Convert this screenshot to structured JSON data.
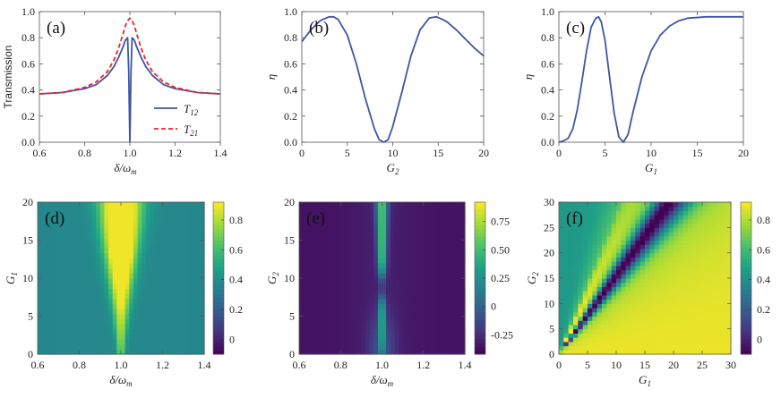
{
  "colors": {
    "blue": "#3f55a3",
    "red": "#e8262a",
    "frame": "#555555"
  },
  "chart_data": [
    {
      "id": "a",
      "type": "line",
      "panel_label": "(a)",
      "xlabel": "δ/ω",
      "xlabel_sub": "m",
      "ylabel": "Transmission",
      "xlim": [
        0.6,
        1.4
      ],
      "ylim": [
        0.0,
        1.0
      ],
      "xticks": [
        "0.6",
        "0.8",
        "1.0",
        "1.2",
        "1.4"
      ],
      "yticks": [
        "0.0",
        "0.2",
        "0.4",
        "0.6",
        "0.8",
        "1.0"
      ],
      "legend": [
        {
          "name": "T",
          "sub": "12",
          "style": "solid"
        },
        {
          "name": "T",
          "sub": "21",
          "style": "dashed"
        }
      ],
      "series": [
        {
          "name": "T12",
          "x": [
            0.6,
            0.7,
            0.8,
            0.85,
            0.9,
            0.93,
            0.95,
            0.97,
            0.98,
            0.99,
            0.995,
            1.0,
            1.005,
            1.01,
            1.02,
            1.03,
            1.05,
            1.07,
            1.1,
            1.15,
            1.2,
            1.3,
            1.4
          ],
          "y": [
            0.37,
            0.38,
            0.41,
            0.44,
            0.51,
            0.58,
            0.65,
            0.73,
            0.78,
            0.8,
            0.55,
            0.0,
            0.55,
            0.8,
            0.78,
            0.73,
            0.65,
            0.58,
            0.51,
            0.44,
            0.41,
            0.38,
            0.37
          ]
        },
        {
          "name": "T21",
          "x": [
            0.6,
            0.7,
            0.8,
            0.85,
            0.9,
            0.93,
            0.95,
            0.97,
            0.98,
            0.99,
            1.0,
            1.01,
            1.02,
            1.03,
            1.05,
            1.07,
            1.1,
            1.15,
            1.2,
            1.3,
            1.4
          ],
          "y": [
            0.37,
            0.38,
            0.42,
            0.46,
            0.54,
            0.63,
            0.72,
            0.83,
            0.89,
            0.93,
            0.95,
            0.93,
            0.89,
            0.83,
            0.72,
            0.63,
            0.54,
            0.46,
            0.42,
            0.38,
            0.37
          ]
        }
      ]
    },
    {
      "id": "b",
      "type": "line",
      "panel_label": "(b)",
      "xlabel": "G",
      "xlabel_sub": "2",
      "ylabel": "η",
      "xlim": [
        0,
        20
      ],
      "ylim": [
        0.0,
        1.0
      ],
      "xticks": [
        "0",
        "5",
        "10",
        "15",
        "20"
      ],
      "yticks": [
        "0.0",
        "0.2",
        "0.4",
        "0.6",
        "0.8",
        "1.0"
      ],
      "series": [
        {
          "name": "eta",
          "x": [
            0,
            1,
            2,
            3,
            3.5,
            4,
            5,
            6,
            7,
            8,
            8.5,
            9,
            9.5,
            10,
            11,
            12,
            13,
            14,
            14.8,
            15.5,
            16,
            17,
            18,
            19,
            20
          ],
          "y": [
            0.77,
            0.86,
            0.93,
            0.96,
            0.96,
            0.94,
            0.82,
            0.6,
            0.33,
            0.1,
            0.02,
            0.0,
            0.02,
            0.12,
            0.38,
            0.66,
            0.86,
            0.95,
            0.96,
            0.94,
            0.92,
            0.86,
            0.79,
            0.72,
            0.66
          ]
        }
      ]
    },
    {
      "id": "c",
      "type": "line",
      "panel_label": "(c)",
      "xlabel": "G",
      "xlabel_sub": "1",
      "ylabel": "η",
      "xlim": [
        0,
        20
      ],
      "ylim": [
        0.0,
        1.0
      ],
      "xticks": [
        "0",
        "5",
        "10",
        "15",
        "20"
      ],
      "yticks": [
        "0.0",
        "0.2",
        "0.4",
        "0.6",
        "0.8",
        "1.0"
      ],
      "series": [
        {
          "name": "eta",
          "x": [
            0,
            0.5,
            1,
            1.5,
            2,
            2.5,
            3,
            3.5,
            4,
            4.3,
            4.6,
            5,
            5.5,
            6,
            6.5,
            7,
            7.5,
            8,
            9,
            10,
            11,
            12,
            13,
            14,
            16,
            18,
            20
          ],
          "y": [
            0.0,
            0.01,
            0.03,
            0.1,
            0.25,
            0.47,
            0.7,
            0.88,
            0.95,
            0.96,
            0.92,
            0.78,
            0.5,
            0.22,
            0.04,
            0.0,
            0.06,
            0.22,
            0.5,
            0.7,
            0.82,
            0.89,
            0.93,
            0.95,
            0.96,
            0.96,
            0.96
          ]
        }
      ]
    },
    {
      "id": "d",
      "type": "heatmap",
      "panel_label": "(d)",
      "xlabel": "δ/ω",
      "xlabel_sub": "m",
      "ylabel": "G",
      "ylabel_sub": "1",
      "xlim": [
        0.6,
        1.4
      ],
      "ylim": [
        0,
        20
      ],
      "xticks": [
        "0.6",
        "0.8",
        "1.0",
        "1.2",
        "1.4"
      ],
      "yticks": [
        "0",
        "5",
        "10",
        "15",
        "20"
      ],
      "colorbar_ticks": [
        "0",
        "0.2",
        "0.4",
        "0.6",
        "0.8"
      ],
      "colorbar_range": [
        -0.1,
        0.92
      ]
    },
    {
      "id": "e",
      "type": "heatmap",
      "panel_label": "(e)",
      "xlabel": "δ/ω",
      "xlabel_sub": "m",
      "ylabel": "G",
      "ylabel_sub": "2",
      "xlim": [
        0.6,
        1.4
      ],
      "ylim": [
        0,
        20
      ],
      "xticks": [
        "0.6",
        "0.8",
        "1.0",
        "1.2",
        "1.4"
      ],
      "yticks": [
        "0",
        "5",
        "10",
        "15",
        "20"
      ],
      "colorbar_ticks": [
        "-0.25",
        "0",
        "0.25",
        "0.50",
        "0.75"
      ],
      "colorbar_range": [
        -0.42,
        0.92
      ]
    },
    {
      "id": "f",
      "type": "heatmap",
      "panel_label": "(f)",
      "xlabel": "G",
      "xlabel_sub": "1",
      "ylabel": "G",
      "ylabel_sub": "2",
      "xlim": [
        0,
        30
      ],
      "ylim": [
        0,
        30
      ],
      "xticks": [
        "0",
        "5",
        "10",
        "15",
        "20",
        "25",
        "30"
      ],
      "yticks": [
        "0",
        "5",
        "10",
        "15",
        "20",
        "25",
        "30"
      ],
      "colorbar_ticks": [
        "0",
        "0.2",
        "0.4",
        "0.6",
        "0.8"
      ],
      "colorbar_range": [
        -0.1,
        0.92
      ]
    }
  ]
}
